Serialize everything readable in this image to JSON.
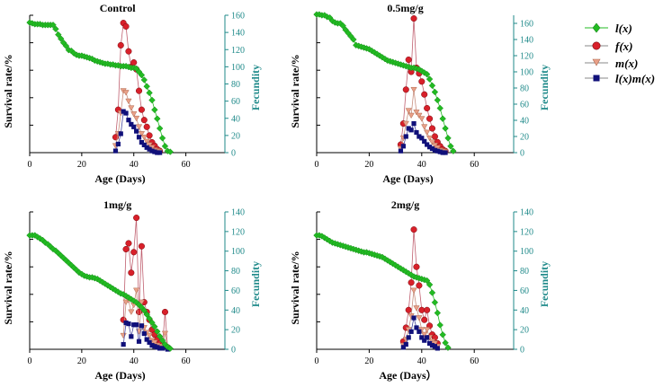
{
  "colors": {
    "lx": "#22bb22",
    "fx": "#d8202a",
    "mx": "#e8a088",
    "lxmx": "#10107a",
    "right_axis": "#1f8a8a",
    "left_axis": "#000000"
  },
  "legend": {
    "items": [
      {
        "key": "lx",
        "label": "l(x)",
        "marker": "diamond"
      },
      {
        "key": "fx",
        "label": "f(x)",
        "marker": "circle"
      },
      {
        "key": "mx",
        "label": "m(x)",
        "marker": "triangle-down"
      },
      {
        "key": "lxmx",
        "label": "l(x)m(x)",
        "marker": "square"
      }
    ]
  },
  "chart_data": [
    {
      "type": "line",
      "title": "Control",
      "xlabel": "Age (Days)",
      "ylabel_left": "Survival rate/%",
      "ylabel_right": "Fecundity",
      "xlim": [
        0,
        75
      ],
      "x_ticks": [
        0,
        20,
        40,
        60
      ],
      "ylim_right": [
        0,
        160
      ],
      "right_ticks": [
        0,
        20,
        40,
        60,
        80,
        100,
        120,
        140,
        160
      ],
      "series": [
        {
          "key": "lx",
          "axis": "left",
          "x": [
            0,
            1,
            2,
            3,
            4,
            5,
            6,
            7,
            8,
            9,
            10,
            11,
            12,
            13,
            14,
            15,
            16,
            17,
            18,
            19,
            20,
            21,
            22,
            23,
            24,
            25,
            26,
            27,
            28,
            29,
            30,
            31,
            32,
            33,
            34,
            35,
            36,
            37,
            38,
            39,
            40,
            41,
            42,
            43,
            44,
            45,
            46,
            47,
            48,
            49,
            50,
            51,
            52,
            53,
            54
          ],
          "y": [
            161,
            160,
            159,
            159,
            159,
            158,
            158,
            158,
            158,
            158,
            153,
            146,
            141,
            136,
            132,
            127,
            126,
            123,
            121,
            120,
            120,
            119,
            118,
            117,
            116,
            114,
            113,
            112,
            111,
            110,
            110,
            109,
            109,
            108,
            108,
            107,
            107,
            107,
            106,
            105,
            105,
            104,
            100,
            96,
            90,
            82,
            74,
            65,
            53,
            42,
            30,
            18,
            8,
            2,
            1
          ]
        },
        {
          "key": "fx",
          "axis": "right",
          "x": [
            33,
            34,
            35,
            36,
            37,
            38,
            39,
            40,
            41,
            42,
            43,
            44,
            45,
            46,
            47,
            48,
            49,
            50
          ],
          "y": [
            18,
            50,
            125,
            151,
            147,
            118,
            100,
            105,
            97,
            72,
            50,
            38,
            30,
            20,
            12,
            8,
            4,
            2
          ]
        },
        {
          "key": "mx",
          "axis": "right",
          "x": [
            33,
            34,
            35,
            36,
            37,
            38,
            39,
            40,
            41,
            42,
            43,
            44,
            45,
            46,
            47,
            48,
            49,
            50
          ],
          "y": [
            8,
            22,
            46,
            72,
            70,
            60,
            52,
            45,
            40,
            30,
            22,
            18,
            13,
            9,
            6,
            3,
            2,
            1
          ]
        },
        {
          "key": "lxmx",
          "axis": "right",
          "x": [
            33,
            34,
            35,
            36,
            37,
            38,
            39,
            40,
            41,
            42,
            43,
            44,
            45,
            46,
            47,
            48,
            49,
            50
          ],
          "y": [
            2,
            10,
            22,
            48,
            46,
            38,
            33,
            30,
            25,
            18,
            12,
            9,
            6,
            4,
            2,
            1,
            0,
            0
          ]
        }
      ]
    },
    {
      "type": "line",
      "title": "0.5mg/g",
      "xlabel": "Age (Days)",
      "ylabel_left": "Survival rate/%",
      "ylabel_right": "Fecundity",
      "xlim": [
        0,
        75
      ],
      "x_ticks": [
        0,
        20,
        40,
        60
      ],
      "ylim_right": [
        0,
        170
      ],
      "right_ticks": [
        0,
        20,
        40,
        60,
        80,
        100,
        120,
        140,
        160
      ],
      "series": [
        {
          "key": "lx",
          "axis": "left",
          "x": [
            0,
            1,
            2,
            3,
            4,
            5,
            6,
            7,
            8,
            9,
            10,
            11,
            12,
            13,
            14,
            15,
            16,
            17,
            18,
            19,
            20,
            21,
            22,
            23,
            24,
            25,
            26,
            27,
            28,
            29,
            30,
            31,
            32,
            33,
            34,
            35,
            36,
            37,
            38,
            39,
            40,
            41,
            42,
            43,
            44,
            45,
            46,
            47,
            48,
            49,
            50,
            51,
            52
          ],
          "y": [
            171,
            171,
            170,
            170,
            168,
            167,
            163,
            161,
            160,
            160,
            157,
            152,
            148,
            144,
            140,
            133,
            132,
            131,
            130,
            129,
            128,
            126,
            124,
            122,
            120,
            118,
            116,
            114,
            113,
            112,
            111,
            110,
            109,
            108,
            107,
            106,
            105,
            105,
            104,
            103,
            101,
            99,
            97,
            91,
            83,
            75,
            65,
            55,
            42,
            30,
            18,
            8,
            2
          ]
        },
        {
          "key": "fx",
          "axis": "right",
          "x": [
            32,
            33,
            34,
            35,
            36,
            37,
            38,
            39,
            40,
            41,
            42,
            43,
            44,
            45,
            46,
            47,
            48,
            49
          ],
          "y": [
            10,
            36,
            78,
            115,
            100,
            166,
            105,
            98,
            88,
            72,
            55,
            42,
            30,
            20,
            13,
            8,
            4,
            2
          ]
        },
        {
          "key": "mx",
          "axis": "right",
          "x": [
            32,
            33,
            34,
            35,
            36,
            37,
            38,
            39,
            40,
            41,
            42,
            43,
            44,
            45,
            46,
            47,
            48,
            49
          ],
          "y": [
            5,
            18,
            36,
            52,
            46,
            78,
            50,
            46,
            42,
            32,
            25,
            18,
            13,
            9,
            6,
            3,
            2,
            1
          ]
        },
        {
          "key": "lxmx",
          "axis": "right",
          "x": [
            32,
            33,
            34,
            35,
            36,
            37,
            38,
            39,
            40,
            41,
            42,
            43,
            44,
            45,
            46,
            47,
            48,
            49
          ],
          "y": [
            2,
            8,
            20,
            30,
            28,
            36,
            25,
            20,
            18,
            14,
            10,
            7,
            5,
            3,
            2,
            1,
            0,
            0
          ]
        }
      ]
    },
    {
      "type": "line",
      "title": "1mg/g",
      "xlabel": "Age (Days)",
      "ylabel_left": "Survival rate/%",
      "ylabel_right": "Fecundity",
      "xlim": [
        0,
        75
      ],
      "x_ticks": [
        0,
        20,
        40,
        60
      ],
      "ylim_right": [
        0,
        140
      ],
      "right_ticks": [
        0,
        20,
        40,
        60,
        80,
        100,
        120,
        140
      ],
      "series": [
        {
          "key": "lx",
          "axis": "left",
          "x": [
            0,
            1,
            2,
            3,
            4,
            5,
            6,
            7,
            8,
            9,
            10,
            11,
            12,
            13,
            14,
            15,
            16,
            17,
            18,
            19,
            20,
            21,
            22,
            23,
            24,
            25,
            26,
            27,
            28,
            29,
            30,
            31,
            32,
            33,
            34,
            35,
            36,
            37,
            38,
            39,
            40,
            41,
            42,
            43,
            44,
            45,
            46,
            47,
            48,
            49,
            50,
            51,
            52,
            53,
            54
          ],
          "y": [
            141,
            141,
            141,
            139,
            137,
            135,
            132,
            130,
            127,
            124,
            122,
            119,
            116,
            113,
            110,
            107,
            104,
            101,
            98,
            95,
            93,
            91,
            90,
            89,
            89,
            88,
            87,
            85,
            83,
            81,
            79,
            77,
            75,
            73,
            71,
            69,
            68,
            66,
            64,
            62,
            60,
            58,
            55,
            52,
            48,
            43,
            38,
            33,
            28,
            22,
            16,
            11,
            6,
            3,
            1
          ]
        },
        {
          "key": "fx",
          "axis": "right",
          "x": [
            36,
            37,
            38,
            39,
            40,
            41,
            42,
            43,
            44,
            45,
            46,
            47,
            48,
            49,
            50,
            51,
            52,
            53
          ],
          "y": [
            30,
            102,
            108,
            78,
            99,
            134,
            38,
            105,
            48,
            38,
            30,
            20,
            15,
            10,
            6,
            4,
            38,
            2
          ]
        },
        {
          "key": "mx",
          "axis": "right",
          "x": [
            36,
            37,
            38,
            39,
            40,
            41,
            42,
            43,
            44,
            45,
            46,
            47,
            48,
            49,
            50,
            51,
            52,
            53
          ],
          "y": [
            14,
            48,
            50,
            38,
            45,
            60,
            18,
            48,
            22,
            17,
            14,
            9,
            7,
            4,
            3,
            2,
            16,
            1
          ]
        },
        {
          "key": "lxmx",
          "axis": "right",
          "x": [
            36,
            37,
            38,
            39,
            40,
            41,
            42,
            43,
            44,
            45,
            46,
            47,
            48,
            49,
            50,
            51,
            52,
            53
          ],
          "y": [
            5,
            27,
            26,
            13,
            25,
            25,
            8,
            24,
            16,
            10,
            7,
            4,
            3,
            2,
            1,
            1,
            3,
            0
          ]
        }
      ]
    },
    {
      "type": "line",
      "title": "2mg/g",
      "xlabel": "Age (Days）",
      "ylabel_left": "Survival rate/%",
      "ylabel_right": "Fecundity",
      "xlim": [
        0,
        75
      ],
      "x_ticks": [
        0,
        20,
        40,
        60
      ],
      "ylim_right": [
        0,
        140
      ],
      "right_ticks": [
        0,
        20,
        40,
        60,
        80,
        100,
        120,
        140
      ],
      "series": [
        {
          "key": "lx",
          "axis": "left",
          "x": [
            0,
            1,
            2,
            3,
            4,
            5,
            6,
            7,
            8,
            9,
            10,
            11,
            12,
            13,
            14,
            15,
            16,
            17,
            18,
            19,
            20,
            21,
            22,
            23,
            24,
            25,
            26,
            27,
            28,
            29,
            30,
            31,
            32,
            33,
            34,
            35,
            36,
            37,
            38,
            39,
            40,
            41,
            42,
            43,
            44,
            45,
            46,
            47,
            48,
            49,
            50
          ],
          "y": [
            141,
            141,
            140,
            138,
            136,
            134,
            132,
            131,
            130,
            129,
            128,
            127,
            126,
            125,
            124,
            123,
            122,
            121,
            120,
            120,
            119,
            118,
            117,
            116,
            115,
            114,
            112,
            110,
            108,
            106,
            104,
            102,
            100,
            98,
            96,
            94,
            92,
            90,
            89,
            88,
            87,
            86,
            85,
            80,
            70,
            58,
            45,
            30,
            18,
            8,
            2
          ]
        },
        {
          "key": "fx",
          "axis": "right",
          "x": [
            33,
            34,
            35,
            36,
            37,
            38,
            39,
            40,
            41,
            42,
            43,
            44,
            45,
            46
          ],
          "y": [
            8,
            22,
            40,
            68,
            122,
            84,
            65,
            40,
            30,
            40,
            24,
            15,
            12,
            6
          ]
        },
        {
          "key": "mx",
          "axis": "right",
          "x": [
            33,
            34,
            35,
            36,
            37,
            38,
            39,
            40,
            41,
            42,
            43,
            44,
            45,
            46
          ],
          "y": [
            4,
            10,
            20,
            34,
            60,
            42,
            32,
            20,
            15,
            20,
            12,
            8,
            6,
            3
          ]
        },
        {
          "key": "lxmx",
          "axis": "right",
          "x": [
            33,
            34,
            35,
            36,
            37,
            38,
            39,
            40,
            41,
            42,
            43,
            44,
            45,
            46
          ],
          "y": [
            2,
            5,
            12,
            18,
            32,
            22,
            18,
            12,
            9,
            12,
            6,
            4,
            3,
            1
          ]
        }
      ]
    }
  ]
}
